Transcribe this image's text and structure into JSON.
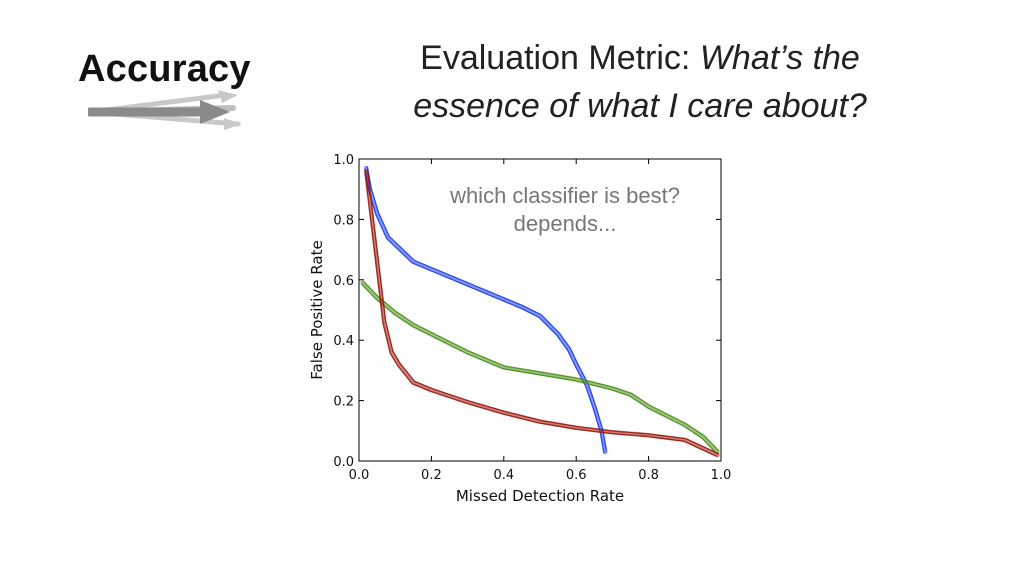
{
  "slide": {
    "section_title": "Accuracy",
    "heading_lead": "Evaluation Metric: ",
    "heading_italic": "What’s the essence of what I care about?"
  },
  "chart_data": {
    "type": "line",
    "xlabel": "Missed Detection Rate",
    "ylabel": "False Positive Rate",
    "xlim": [
      0.0,
      1.0
    ],
    "ylim": [
      0.0,
      1.0
    ],
    "xticks": [
      "0.0",
      "0.2",
      "0.4",
      "0.6",
      "0.8",
      "1.0"
    ],
    "yticks": [
      "0.0",
      "0.2",
      "0.4",
      "0.6",
      "0.8",
      "1.0"
    ],
    "grid": false,
    "annotations": [
      "which classifier is best?",
      "depends..."
    ],
    "series": [
      {
        "color": "#1f3ff0",
        "x": [
          0.02,
          0.03,
          0.05,
          0.08,
          0.15,
          0.25,
          0.35,
          0.45,
          0.5,
          0.55,
          0.58,
          0.6,
          0.63,
          0.65,
          0.67,
          0.68
        ],
        "y": [
          0.97,
          0.9,
          0.82,
          0.74,
          0.66,
          0.61,
          0.56,
          0.51,
          0.48,
          0.42,
          0.37,
          0.32,
          0.25,
          0.18,
          0.1,
          0.03
        ]
      },
      {
        "color": "#4a8f1a",
        "x": [
          0.01,
          0.05,
          0.1,
          0.15,
          0.2,
          0.3,
          0.4,
          0.5,
          0.6,
          0.7,
          0.75,
          0.8,
          0.85,
          0.9,
          0.95,
          0.99
        ],
        "y": [
          0.59,
          0.54,
          0.49,
          0.45,
          0.42,
          0.36,
          0.31,
          0.29,
          0.27,
          0.24,
          0.22,
          0.18,
          0.15,
          0.12,
          0.08,
          0.03
        ]
      },
      {
        "color": "#9a1a10",
        "x": [
          0.02,
          0.03,
          0.05,
          0.07,
          0.09,
          0.11,
          0.15,
          0.2,
          0.3,
          0.4,
          0.5,
          0.6,
          0.7,
          0.8,
          0.9,
          0.99
        ],
        "y": [
          0.96,
          0.86,
          0.66,
          0.46,
          0.36,
          0.32,
          0.26,
          0.235,
          0.195,
          0.16,
          0.13,
          0.11,
          0.095,
          0.085,
          0.07,
          0.02
        ]
      }
    ]
  }
}
